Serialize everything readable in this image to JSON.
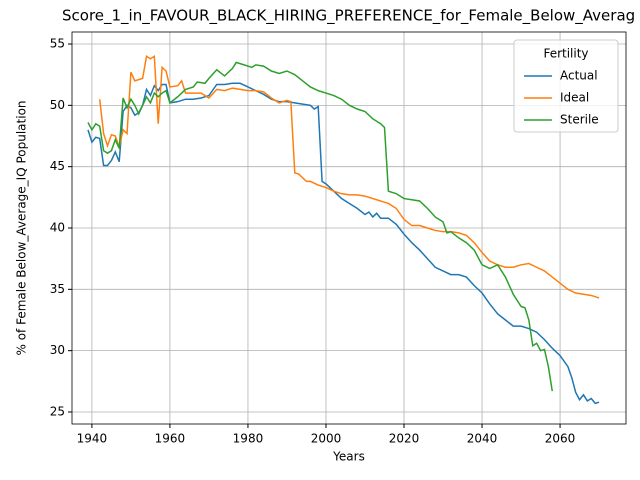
{
  "chart_data": {
    "type": "line",
    "title": "Score_1_in_FAVOUR_BLACK_HIRING_PREFERENCE_for_Female_Below_Averag",
    "x_label": "Years",
    "y_label": "% of Female Below_Average_IQ Population",
    "legend_title": "Fertility",
    "legend": "upper right",
    "grid": true,
    "xlim": [
      1934.9,
      2076.9
    ],
    "ylim": [
      24.02,
      55.98
    ],
    "xticks": [
      1940,
      1960,
      1980,
      2000,
      2020,
      2040,
      2060
    ],
    "yticks": [
      25,
      30,
      35,
      40,
      45,
      50,
      55
    ],
    "series": [
      {
        "name": "Actual",
        "color": "#1f77b4",
        "x": [
          1939,
          1940,
          1941,
          1942,
          1943,
          1944,
          1945,
          1946,
          1947,
          1948,
          1949,
          1950,
          1951,
          1952,
          1953,
          1954,
          1955,
          1956,
          1957,
          1958,
          1959,
          1960,
          1962,
          1964,
          1966,
          1968,
          1970,
          1972,
          1974,
          1976,
          1978,
          1980,
          1982,
          1984,
          1986,
          1988,
          1990,
          1992,
          1994,
          1996,
          1997,
          1998,
          1999,
          2000,
          2002,
          2004,
          2006,
          2008,
          2010,
          2011,
          2012,
          2013,
          2014,
          2016,
          2018,
          2020,
          2022,
          2024,
          2026,
          2028,
          2030,
          2032,
          2034,
          2036,
          2038,
          2040,
          2042,
          2044,
          2046,
          2048,
          2050,
          2052,
          2054,
          2056,
          2058,
          2060,
          2062,
          2063,
          2064,
          2065,
          2066,
          2067,
          2068,
          2069,
          2070
        ],
        "values": [
          48.0,
          47.0,
          47.4,
          47.3,
          45.1,
          45.1,
          45.5,
          46.2,
          45.4,
          49.5,
          50.0,
          49.8,
          49.2,
          49.4,
          50.0,
          51.3,
          50.8,
          51.6,
          51.2,
          51.7,
          51.7,
          50.2,
          50.3,
          50.5,
          50.5,
          50.6,
          50.8,
          51.7,
          51.7,
          51.8,
          51.8,
          51.5,
          51.2,
          50.9,
          50.5,
          50.3,
          50.3,
          50.2,
          50.1,
          50.0,
          49.7,
          49.9,
          43.8,
          43.6,
          43.0,
          42.4,
          42.0,
          41.6,
          41.1,
          41.3,
          40.9,
          41.2,
          40.8,
          40.8,
          40.3,
          39.5,
          38.8,
          38.2,
          37.5,
          36.8,
          36.5,
          36.2,
          36.2,
          36.0,
          35.3,
          34.7,
          33.8,
          33.0,
          32.5,
          32.0,
          32.0,
          31.8,
          31.5,
          30.9,
          30.2,
          29.6,
          28.7,
          27.8,
          26.6,
          26.0,
          26.4,
          25.9,
          26.1,
          25.7,
          25.8
        ]
      },
      {
        "name": "Ideal",
        "color": "#ff7f0e",
        "x": [
          1942,
          1943,
          1944,
          1945,
          1946,
          1947,
          1948,
          1949,
          1950,
          1951,
          1953,
          1954,
          1955,
          1956,
          1957,
          1958,
          1959,
          1960,
          1962,
          1963,
          1964,
          1966,
          1968,
          1970,
          1972,
          1974,
          1976,
          1978,
          1980,
          1982,
          1984,
          1986,
          1988,
          1990,
          1991,
          1992,
          1993,
          1995,
          1996,
          1998,
          2000,
          2002,
          2004,
          2006,
          2008,
          2010,
          2012,
          2014,
          2016,
          2018,
          2020,
          2022,
          2024,
          2026,
          2028,
          2030,
          2032,
          2034,
          2036,
          2038,
          2040,
          2042,
          2044,
          2046,
          2048,
          2050,
          2052,
          2054,
          2056,
          2058,
          2060,
          2062,
          2064,
          2066,
          2068,
          2070
        ],
        "values": [
          50.5,
          47.7,
          46.7,
          47.6,
          47.5,
          46.6,
          48.0,
          47.7,
          52.7,
          52.0,
          52.2,
          54.0,
          53.8,
          54.0,
          48.5,
          53.1,
          52.8,
          51.5,
          51.6,
          52.0,
          51.0,
          51.0,
          51.0,
          50.6,
          51.3,
          51.2,
          51.4,
          51.3,
          51.2,
          51.2,
          51.1,
          50.6,
          50.2,
          50.4,
          50.3,
          44.5,
          44.4,
          43.8,
          43.8,
          43.5,
          43.3,
          43.0,
          42.8,
          42.7,
          42.7,
          42.6,
          42.4,
          42.2,
          42.0,
          41.6,
          40.7,
          40.2,
          40.2,
          40.0,
          39.8,
          39.7,
          39.7,
          39.6,
          39.4,
          38.8,
          38.0,
          37.3,
          37.0,
          36.8,
          36.8,
          37.0,
          37.1,
          36.8,
          36.5,
          36.0,
          35.5,
          35.0,
          34.7,
          34.6,
          34.5,
          34.3
        ]
      },
      {
        "name": "Sterile",
        "color": "#2ca02c",
        "x": [
          1939,
          1940,
          1941,
          1942,
          1943,
          1944,
          1945,
          1946,
          1947,
          1948,
          1949,
          1950,
          1951,
          1952,
          1953,
          1954,
          1955,
          1956,
          1957,
          1958,
          1959,
          1960,
          1962,
          1964,
          1966,
          1967,
          1969,
          1970,
          1972,
          1974,
          1976,
          1977,
          1979,
          1981,
          1982,
          1984,
          1986,
          1988,
          1990,
          1992,
          1994,
          1996,
          1998,
          2000,
          2002,
          2004,
          2006,
          2008,
          2010,
          2012,
          2014,
          2015,
          2016,
          2018,
          2020,
          2022,
          2024,
          2026,
          2028,
          2030,
          2031,
          2032,
          2034,
          2036,
          2038,
          2040,
          2042,
          2044,
          2046,
          2048,
          2050,
          2051,
          2052,
          2053,
          2054,
          2055,
          2056,
          2057,
          2058
        ],
        "values": [
          48.6,
          48.0,
          48.5,
          48.3,
          46.3,
          46.1,
          46.3,
          47.2,
          46.5,
          50.6,
          49.8,
          50.5,
          50.0,
          49.3,
          50.0,
          50.7,
          50.2,
          51.0,
          50.7,
          51.0,
          51.2,
          50.2,
          50.7,
          51.3,
          51.5,
          51.9,
          51.8,
          52.2,
          52.9,
          52.4,
          53.0,
          53.5,
          53.3,
          53.1,
          53.3,
          53.2,
          52.8,
          52.6,
          52.8,
          52.5,
          52.0,
          51.5,
          51.2,
          51.0,
          50.8,
          50.5,
          50.0,
          49.7,
          49.5,
          48.9,
          48.5,
          48.2,
          43.0,
          42.8,
          42.4,
          42.3,
          42.2,
          41.6,
          40.9,
          40.5,
          39.6,
          39.7,
          39.2,
          38.8,
          38.2,
          37.0,
          36.7,
          37.0,
          36.0,
          34.6,
          33.6,
          33.5,
          32.5,
          30.4,
          30.6,
          30.0,
          30.1,
          28.7,
          26.7
        ]
      }
    ]
  }
}
